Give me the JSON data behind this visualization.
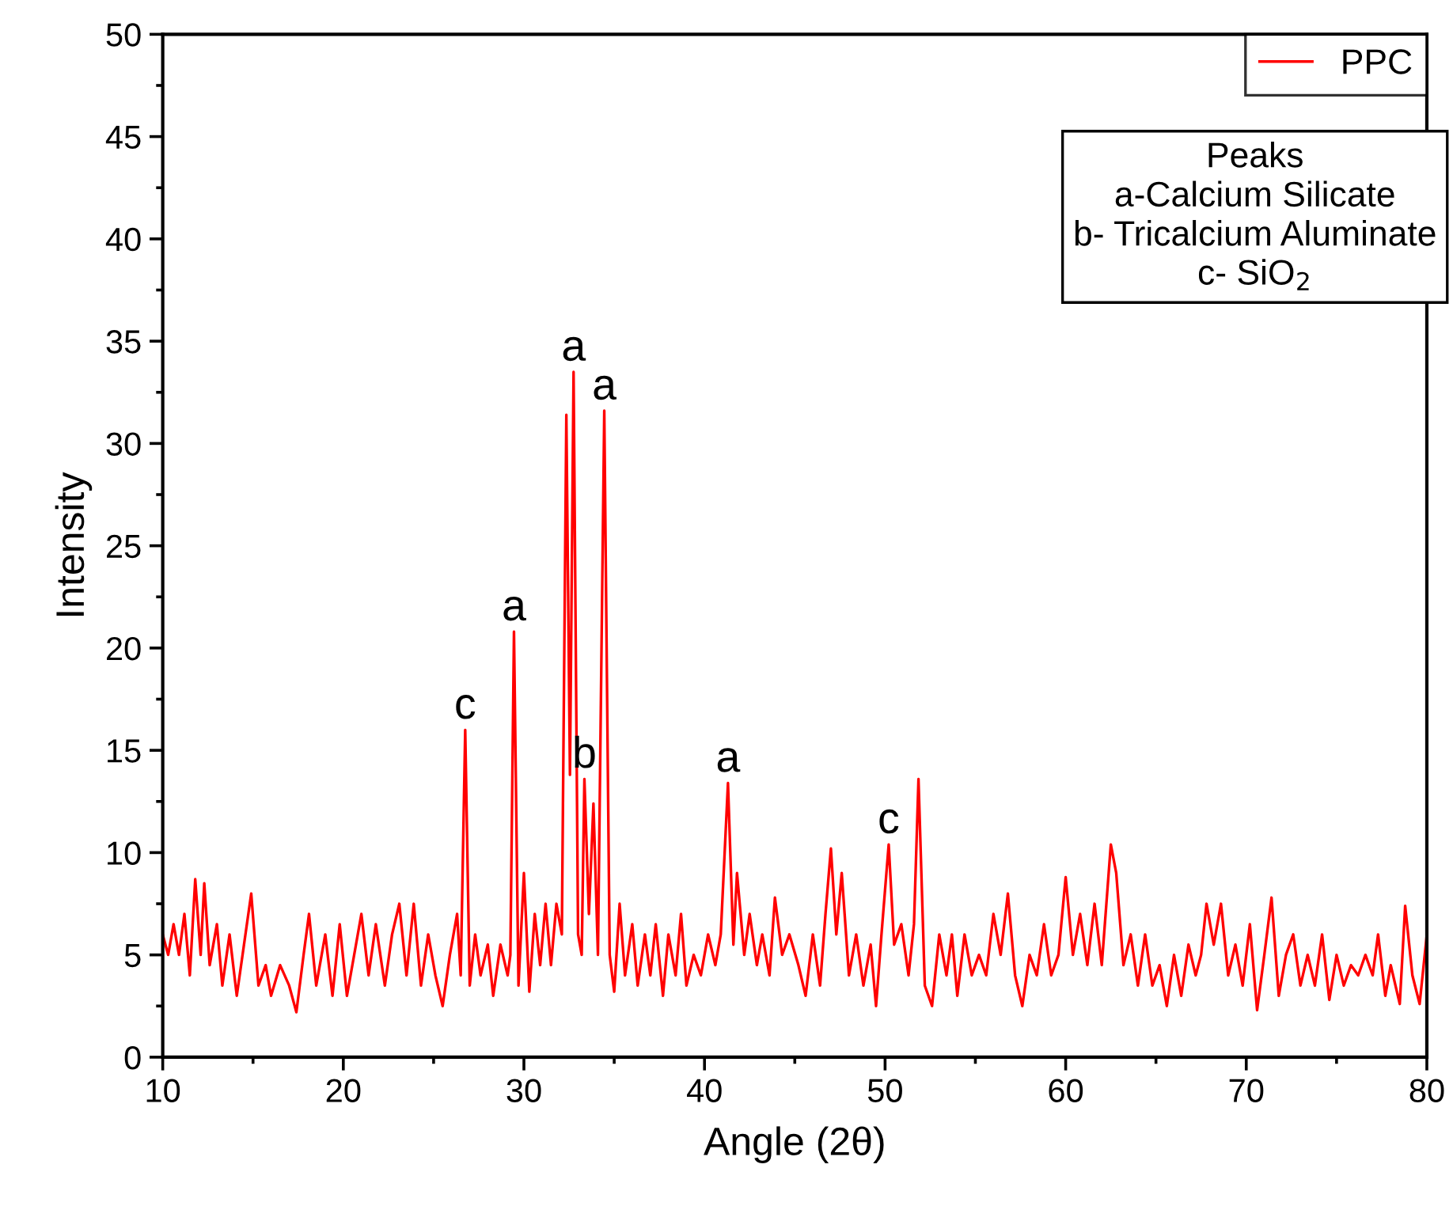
{
  "chart_data": {
    "type": "line",
    "xlabel": "Angle (2θ)",
    "ylabel": "Intensity",
    "xlim": [
      10,
      80
    ],
    "ylim": [
      0,
      50
    ],
    "xticks": [
      10,
      20,
      30,
      40,
      50,
      60,
      70,
      80
    ],
    "yticks": [
      0,
      5,
      10,
      15,
      20,
      25,
      30,
      35,
      40,
      45,
      50
    ],
    "grid": false,
    "legend": "top right",
    "marker": "none",
    "line_style": "solid",
    "series": [
      {
        "name": "PPC",
        "color": "#ff0000",
        "x": [
          10,
          10.3,
          10.6,
          10.9,
          11.2,
          11.5,
          11.8,
          12.1,
          12.3,
          12.6,
          13,
          13.3,
          13.7,
          14.1,
          14.5,
          14.9,
          15.3,
          15.7,
          16,
          16.5,
          17,
          17.4,
          17.8,
          18.1,
          18.5,
          19,
          19.4,
          19.8,
          20.2,
          20.6,
          21,
          21.4,
          21.8,
          22.3,
          22.7,
          23.1,
          23.5,
          23.9,
          24.3,
          24.7,
          25.1,
          25.5,
          25.9,
          26.3,
          26.5,
          26.75,
          27.0,
          27.3,
          27.6,
          28,
          28.3,
          28.7,
          29.1,
          29.25,
          29.45,
          29.7,
          30.0,
          30.3,
          30.6,
          30.9,
          31.2,
          31.5,
          31.8,
          32.1,
          32.35,
          32.55,
          32.75,
          33.0,
          33.2,
          33.35,
          33.6,
          33.85,
          34.1,
          34.45,
          34.75,
          35,
          35.3,
          35.6,
          36,
          36.3,
          36.7,
          37,
          37.3,
          37.7,
          38,
          38.4,
          38.7,
          39,
          39.4,
          39.8,
          40.2,
          40.6,
          40.9,
          41.3,
          41.6,
          41.8,
          42.2,
          42.5,
          42.9,
          43.2,
          43.6,
          43.9,
          44.3,
          44.7,
          45.2,
          45.6,
          46,
          46.4,
          46.7,
          47,
          47.3,
          47.6,
          48,
          48.4,
          48.8,
          49.2,
          49.5,
          49.8,
          50.2,
          50.5,
          50.9,
          51.3,
          51.6,
          51.85,
          52.2,
          52.6,
          53,
          53.4,
          53.7,
          54,
          54.4,
          54.8,
          55.2,
          55.6,
          56,
          56.4,
          56.8,
          57.2,
          57.6,
          58,
          58.4,
          58.8,
          59.2,
          59.6,
          60,
          60.4,
          60.8,
          61.2,
          61.6,
          62,
          62.5,
          62.8,
          63.2,
          63.6,
          64,
          64.4,
          64.8,
          65.2,
          65.6,
          66,
          66.4,
          66.8,
          67.2,
          67.5,
          67.8,
          68.2,
          68.6,
          69,
          69.4,
          69.8,
          70.2,
          70.6,
          71,
          71.4,
          71.8,
          72.2,
          72.6,
          73,
          73.4,
          73.8,
          74.2,
          74.6,
          75,
          75.4,
          75.8,
          76.2,
          76.6,
          77,
          77.3,
          77.7,
          78,
          78.5,
          78.8,
          79.2,
          79.6,
          80
        ],
        "values": [
          6,
          5,
          6.5,
          5,
          7,
          4,
          8.7,
          5,
          8.5,
          4.5,
          6.5,
          3.5,
          6,
          3,
          5.5,
          8,
          3.5,
          4.5,
          3,
          4.5,
          3.5,
          2.2,
          5,
          7,
          3.5,
          6,
          3,
          6.5,
          3,
          5,
          7,
          4,
          6.5,
          3.5,
          6,
          7.5,
          4,
          7.5,
          3.5,
          6,
          4,
          2.5,
          5,
          7,
          4,
          16,
          3.5,
          6,
          4,
          5.5,
          3,
          5.5,
          4,
          5,
          20.8,
          3.5,
          9,
          3.2,
          7,
          4.5,
          7.5,
          4.5,
          7.5,
          6,
          31.4,
          13.8,
          33.5,
          6,
          5,
          13.6,
          7,
          12.4,
          5,
          31.6,
          5,
          3.2,
          7.5,
          4,
          6.5,
          3.5,
          6,
          4,
          6.5,
          3,
          6,
          4,
          7,
          3.5,
          5,
          4,
          6,
          4.5,
          6,
          13.4,
          5.5,
          9,
          5,
          7,
          4.5,
          6,
          4,
          7.8,
          5,
          6,
          4.5,
          3,
          6,
          3.5,
          7,
          10.2,
          6,
          9,
          4,
          6,
          3.5,
          5.5,
          2.5,
          6,
          10.4,
          5.5,
          6.5,
          4,
          6.5,
          13.6,
          3.5,
          2.5,
          6,
          4,
          6,
          3,
          6,
          4,
          5,
          4,
          7,
          5,
          8,
          4,
          2.5,
          5,
          4,
          6.5,
          4,
          5,
          8.8,
          5,
          7,
          4.5,
          7.5,
          4.5,
          10.4,
          9,
          4.5,
          6,
          3.5,
          6,
          3.5,
          4.5,
          2.5,
          5,
          3,
          5.5,
          4,
          5,
          7.5,
          5.5,
          7.5,
          4,
          5.5,
          3.5,
          6.5,
          2.3,
          5,
          7.8,
          3,
          5,
          6,
          3.5,
          5,
          3.5,
          6,
          2.8,
          5,
          3.5,
          4.5,
          4,
          5,
          4,
          6,
          3,
          4.5,
          2.6,
          7.4,
          4,
          2.6,
          6
        ]
      }
    ],
    "annotations": [
      {
        "text": "c",
        "x": 26.75,
        "y": 16
      },
      {
        "text": "a",
        "x": 29.45,
        "y": 20.8
      },
      {
        "text": "a",
        "x": 32.75,
        "y": 33.5
      },
      {
        "text": "b",
        "x": 33.35,
        "y": 13.6
      },
      {
        "text": "a",
        "x": 34.45,
        "y": 31.6
      },
      {
        "text": "a",
        "x": 41.3,
        "y": 13.4
      },
      {
        "text": "c",
        "x": 50.2,
        "y": 10.4
      },
      "Peaks",
      "a-Calcium Silicate",
      "b- Tricalcium Aluminate",
      "c- SiO$_{2}$"
    ]
  }
}
